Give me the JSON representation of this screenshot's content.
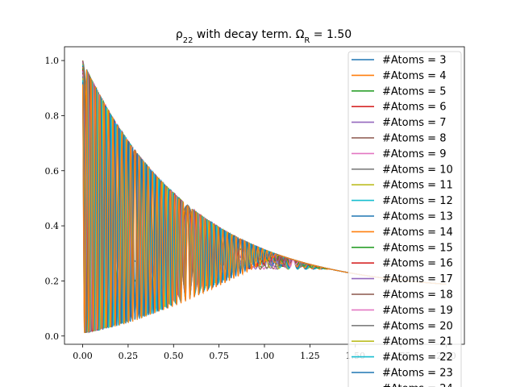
{
  "chart_data": {
    "type": "line",
    "title_prefix": "ρ",
    "title_sub": "22",
    "title_middle": " with decay term. ",
    "title_omega": "Ω",
    "title_omega_sub": "R",
    "title_value": " = 1.50",
    "xlim": [
      -0.1,
      2.1
    ],
    "ylim": [
      -0.03,
      1.05
    ],
    "x_ticks": [
      0.0,
      0.25,
      0.5,
      0.75,
      1.0,
      1.25,
      1.5,
      1.75,
      2.0
    ],
    "x_tick_labels": [
      "0.00",
      "0.25",
      "0.50",
      "0.75",
      "1.00",
      "1.25",
      "1.50",
      "1.75",
      "2.00"
    ],
    "y_ticks": [
      0.0,
      0.2,
      0.4,
      0.6,
      0.8,
      1.0
    ],
    "y_tick_labels": [
      "0.0",
      "0.2",
      "0.4",
      "0.6",
      "0.8",
      "1.0"
    ],
    "envelope": {
      "upper_start": 1.0,
      "upper_end": 0.16,
      "lower_start": 0.01,
      "steady_state": 0.25,
      "decay_rate": 1.7
    },
    "legend_position": "upper right",
    "series": [
      {
        "name": "#Atoms = 3",
        "atoms": 3,
        "color": "#1f77b4"
      },
      {
        "name": "#Atoms = 4",
        "atoms": 4,
        "color": "#ff7f0e"
      },
      {
        "name": "#Atoms = 5",
        "atoms": 5,
        "color": "#2ca02c"
      },
      {
        "name": "#Atoms = 6",
        "atoms": 6,
        "color": "#d62728"
      },
      {
        "name": "#Atoms = 7",
        "atoms": 7,
        "color": "#9467bd"
      },
      {
        "name": "#Atoms = 8",
        "atoms": 8,
        "color": "#8c564b"
      },
      {
        "name": "#Atoms = 9",
        "atoms": 9,
        "color": "#e377c2"
      },
      {
        "name": "#Atoms = 10",
        "atoms": 10,
        "color": "#7f7f7f"
      },
      {
        "name": "#Atoms = 11",
        "atoms": 11,
        "color": "#bcbd22"
      },
      {
        "name": "#Atoms = 12",
        "atoms": 12,
        "color": "#17becf"
      },
      {
        "name": "#Atoms = 13",
        "atoms": 13,
        "color": "#1f77b4"
      },
      {
        "name": "#Atoms = 14",
        "atoms": 14,
        "color": "#ff7f0e"
      },
      {
        "name": "#Atoms = 15",
        "atoms": 15,
        "color": "#2ca02c"
      },
      {
        "name": "#Atoms = 16",
        "atoms": 16,
        "color": "#d62728"
      },
      {
        "name": "#Atoms = 17",
        "atoms": 17,
        "color": "#9467bd"
      },
      {
        "name": "#Atoms = 18",
        "atoms": 18,
        "color": "#8c564b"
      },
      {
        "name": "#Atoms = 19",
        "atoms": 19,
        "color": "#e377c2"
      },
      {
        "name": "#Atoms = 20",
        "atoms": 20,
        "color": "#7f7f7f"
      },
      {
        "name": "#Atoms = 21",
        "atoms": 21,
        "color": "#bcbd22"
      },
      {
        "name": "#Atoms = 22",
        "atoms": 22,
        "color": "#17becf"
      },
      {
        "name": "#Atoms = 23",
        "atoms": 23,
        "color": "#1f77b4"
      },
      {
        "name": "#Atoms = 24",
        "atoms": 24,
        "color": "#ff7f0e"
      }
    ]
  }
}
